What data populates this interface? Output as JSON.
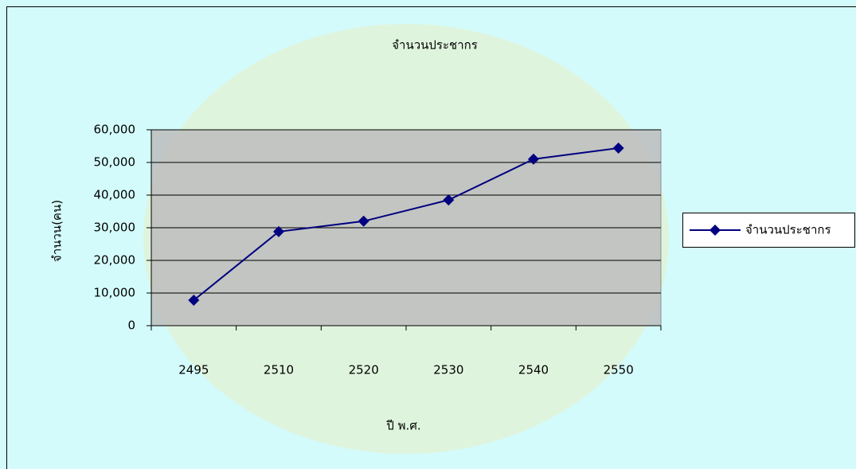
{
  "chart_data": {
    "type": "line",
    "title": "จำนวนประชากร",
    "x_label": "ปี พ.ศ.",
    "y_label": "จำนวน(คน)",
    "categories": [
      "2495",
      "2510",
      "2520",
      "2530",
      "2540",
      "2550"
    ],
    "series": [
      {
        "name": "จำนวนประชากร",
        "color": "#000080",
        "values": [
          7800,
          28800,
          32000,
          38500,
          51000,
          54400
        ]
      }
    ],
    "ylim": [
      0,
      60000
    ],
    "yticks": [
      0,
      {
        "value": 10000,
        "label": "10,000"
      },
      {
        "value": 20000,
        "label": "20,000"
      },
      {
        "value": 30000,
        "label": "30,000"
      },
      {
        "value": 40000,
        "label": "40,000"
      },
      {
        "value": 50000,
        "label": "50,000"
      },
      {
        "value": 60000,
        "label": "60,000"
      }
    ],
    "grid": true,
    "legend": "right"
  }
}
